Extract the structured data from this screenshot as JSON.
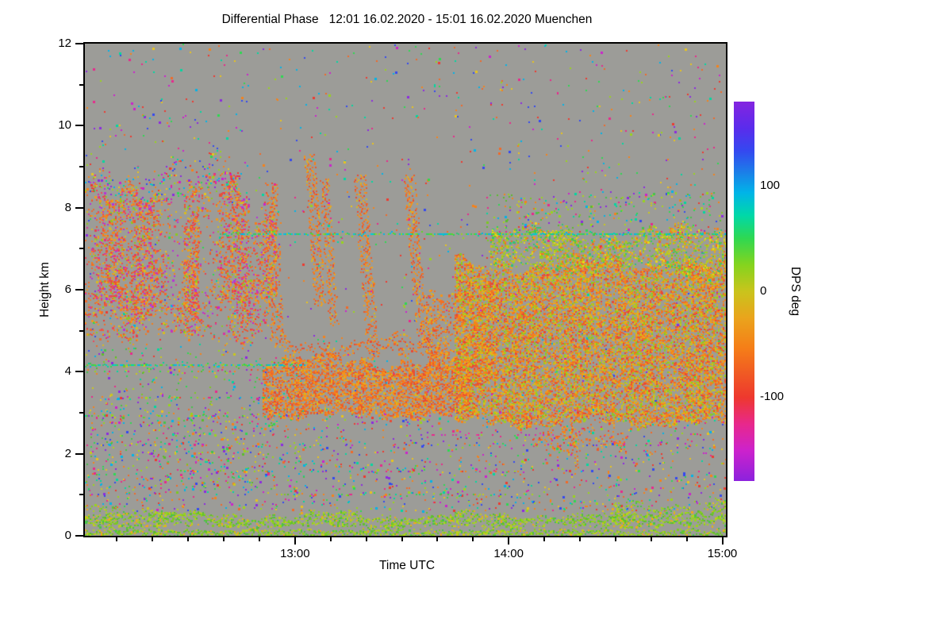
{
  "chart_data": {
    "type": "heatmap",
    "title": "Differential Phase   12:01 16.02.2020 - 15:01 16.02.2020 Muenchen",
    "xlabel": "Time UTC",
    "ylabel": "Height km",
    "station": "Muenchen",
    "time_start": "12:01 16.02.2020",
    "time_end": "15:01 16.02.2020",
    "t_total_min": 180,
    "h_max": 12,
    "x_ticks": [
      {
        "label": "13:00",
        "t": 59
      },
      {
        "label": "14:00",
        "t": 119
      },
      {
        "label": "15:00",
        "t": 179
      }
    ],
    "x_minor_step_min": 10,
    "y_ticks": [
      0,
      2,
      4,
      6,
      8,
      10,
      12
    ],
    "y_minor_step": 1,
    "no_data_color": "#9c9c98",
    "colorbar": {
      "label": "DPS deg",
      "vmax": 180,
      "vmin": -180,
      "ticks": [
        100,
        0,
        -100
      ],
      "stops": [
        [
          "0%",
          "#8424e0"
        ],
        [
          "7%",
          "#5a2cec"
        ],
        [
          "13%",
          "#3448f0"
        ],
        [
          "19%",
          "#1a82e8"
        ],
        [
          "24%",
          "#00b4e8"
        ],
        [
          "30%",
          "#00d8a8"
        ],
        [
          "36%",
          "#2ed852"
        ],
        [
          "43%",
          "#84d41e"
        ],
        [
          "50%",
          "#c9c41c"
        ],
        [
          "57%",
          "#eaa41c"
        ],
        [
          "65%",
          "#f57e18"
        ],
        [
          "72%",
          "#f05824"
        ],
        [
          "78%",
          "#ee382e"
        ],
        [
          "85%",
          "#e8288c"
        ],
        [
          "92%",
          "#cc22cc"
        ],
        [
          "100%",
          "#8c22dd"
        ]
      ]
    },
    "palettes": {
      "cirrus": [
        "#f57e1a",
        "#ef6a2a",
        "#e85432",
        "#f09a1e",
        "#d8ba20",
        "#e83e52",
        "#d834a2",
        "#b832d8",
        "#8cc822",
        "#f5821e",
        "#ef6a2a",
        "#e85432",
        "#f09a1e",
        "#ef465a"
      ],
      "orange": [
        "#f5821a",
        "#f07026",
        "#ea5a2c",
        "#f2941c",
        "#e84a36",
        "#f0a41c",
        "#d8b81e",
        "#ee6430",
        "#f5821a",
        "#f07026",
        "#ea5a2c",
        "#f2941c"
      ],
      "orangeGreen": [
        "#f5821a",
        "#f06c28",
        "#ea5a30",
        "#f29c1a",
        "#c9c41e",
        "#a3cc1e",
        "#e84a38",
        "#f0aa1a",
        "#8cc822",
        "#ef7426",
        "#f5821a",
        "#dcb01e"
      ],
      "greenOrange": [
        "#a3cc1e",
        "#c9c41e",
        "#8cc822",
        "#f29c1a",
        "#f5821a",
        "#66c438",
        "#dab41e",
        "#ef6c28",
        "#34c474",
        "#e8d41c",
        "#96d01e",
        "#b8cc1c"
      ],
      "green": [
        "#7cc822",
        "#98d41c",
        "#b4d41c",
        "#5cbc2e",
        "#c9c81c",
        "#46c44a",
        "#8ed01e",
        "#f0a81a",
        "#70c826",
        "#aad41e",
        "#84cc20",
        "#60c032"
      ],
      "noise": [
        "#8c2ae0",
        "#3448f0",
        "#00b4e8",
        "#2ed852",
        "#98d41c",
        "#e8c41c",
        "#f5821a",
        "#ee3a30",
        "#e8288c",
        "#cc22cc",
        "#00d8a0",
        "#f06a28"
      ],
      "greenNoise": [
        "#7cc822",
        "#98d41c",
        "#2ed852",
        "#00d8a0",
        "#c9c81c",
        "#e8288c",
        "#f5821a",
        "#00b4e8",
        "#8c2ae0",
        "#5cbc2e",
        "#46c44a",
        "#aad41e"
      ],
      "cyanGreen": [
        "#00c8e0",
        "#00d8a0",
        "#2ed852",
        "#60d822",
        "#00b4e8",
        "#98d41c",
        "#00ccc8",
        "#34c474"
      ],
      "magenta": [
        "#e8288c",
        "#cc22cc",
        "#d834a2",
        "#8c2ae0",
        "#ee3aa0"
      ]
    },
    "regions": [
      {
        "name": "background-noise-low",
        "type": "scatter",
        "t": [
          0,
          180
        ],
        "h": [
          0.6,
          3.1
        ],
        "density": 0.055,
        "palette": "noise"
      },
      {
        "name": "background-noise-mid",
        "type": "scatter",
        "t": [
          0,
          180
        ],
        "h": [
          3.1,
          12
        ],
        "density": 0.012,
        "palette": "noise"
      },
      {
        "name": "noise-left-lower",
        "type": "scatter",
        "t": [
          0,
          62
        ],
        "h": [
          1.0,
          4.6
        ],
        "density": 0.03,
        "palette": "greenNoise"
      },
      {
        "name": "cirrus-tower-1",
        "type": "cloud",
        "t": [
          0,
          16
        ],
        "h": [
          5.0,
          9.4
        ],
        "density": 0.5,
        "palette": "cirrus",
        "edge": 1.2,
        "striate": 0.9
      },
      {
        "name": "cirrus-tower-2",
        "type": "cloud",
        "t": [
          13,
          32
        ],
        "h": [
          4.9,
          8.7
        ],
        "density": 0.5,
        "palette": "cirrus",
        "edge": 1.1,
        "striate": 0.9
      },
      {
        "name": "cirrus-tower-3",
        "type": "cloud",
        "t": [
          28,
          46
        ],
        "h": [
          5.2,
          8.9
        ],
        "density": 0.48,
        "palette": "cirrus",
        "edge": 1.2,
        "striate": 0.9
      },
      {
        "name": "cirrus-tower-4",
        "type": "cloud",
        "t": [
          42,
          54
        ],
        "h": [
          5.5,
          8.4
        ],
        "density": 0.42,
        "palette": "cirrus",
        "edge": 1.0,
        "striate": 0.85
      },
      {
        "name": "cirrus-base",
        "type": "cloud",
        "t": [
          0,
          52
        ],
        "h": [
          4.6,
          6.4
        ],
        "density": 0.3,
        "palette": "cirrus",
        "edge": 0.7,
        "striate": 0.8
      },
      {
        "name": "cirrus-top-fringe",
        "type": "cloud",
        "t": [
          0,
          44
        ],
        "h": [
          8.0,
          9.5
        ],
        "density": 0.16,
        "palette": "noise",
        "edge": 1.0,
        "striate": 0.8
      },
      {
        "name": "fall-streak-1",
        "type": "vstreak",
        "tTop": 52,
        "hTop": 8.6,
        "tBot": 54,
        "hBot": 4.6,
        "w": 2.4,
        "density": 0.5,
        "palette": "orange"
      },
      {
        "name": "fall-streak-2",
        "type": "vstreak",
        "tTop": 63,
        "hTop": 9.3,
        "tBot": 66,
        "hBot": 5.6,
        "w": 2.0,
        "density": 0.5,
        "palette": "orange"
      },
      {
        "name": "fall-streak-3",
        "type": "vstreak",
        "tTop": 67,
        "hTop": 8.7,
        "tBot": 70,
        "hBot": 5.1,
        "w": 1.8,
        "density": 0.45,
        "palette": "orange"
      },
      {
        "name": "fall-streak-4",
        "type": "vstreak",
        "tTop": 77,
        "hTop": 8.8,
        "tBot": 81,
        "hBot": 4.3,
        "w": 2.2,
        "density": 0.5,
        "palette": "orange"
      },
      {
        "name": "fall-streak-5",
        "type": "vstreak",
        "tTop": 91,
        "hTop": 8.8,
        "tBot": 95,
        "hBot": 4.6,
        "w": 2.0,
        "density": 0.45,
        "palette": "orange"
      },
      {
        "name": "midlevel-cloud",
        "type": "cloud",
        "t": [
          50,
          108
        ],
        "h": [
          2.8,
          4.5
        ],
        "density": 0.85,
        "palette": "orange",
        "edge": 0.45,
        "striate": 0.25
      },
      {
        "name": "midlevel-cloud-top",
        "type": "cloud",
        "t": [
          56,
          102
        ],
        "h": [
          4.3,
          5.0
        ],
        "density": 0.25,
        "palette": "orange",
        "edge": 0.4,
        "striate": 0.6
      },
      {
        "name": "right-cloud-leading-edge",
        "type": "cloud",
        "t": [
          96,
          116
        ],
        "h": [
          3.6,
          6.5
        ],
        "density": 0.45,
        "palette": "orange",
        "edge": 0.8,
        "striate": 0.7
      },
      {
        "name": "right-cloud-core",
        "type": "cloud",
        "t": [
          104,
          180
        ],
        "h": [
          2.6,
          6.9
        ],
        "density": 0.85,
        "palette": "orangeGreen",
        "edge": 0.5,
        "striate": 0.3
      },
      {
        "name": "right-cloud-upper",
        "type": "cloud",
        "t": [
          114,
          180
        ],
        "h": [
          6.3,
          7.7
        ],
        "density": 0.55,
        "palette": "greenOrange",
        "edge": 0.6,
        "striate": 0.5
      },
      {
        "name": "right-cloud-top-fringe",
        "type": "scatter",
        "t": [
          112,
          180
        ],
        "h": [
          7.2,
          8.4
        ],
        "density": 0.06,
        "palette": "greenNoise"
      },
      {
        "name": "virga-band",
        "type": "cloud",
        "t": [
          126,
          152
        ],
        "h": [
          1.9,
          2.8
        ],
        "density": 0.18,
        "palette": "orange",
        "edge": 0.4,
        "striate": 0.7
      },
      {
        "name": "virga-streak",
        "type": "vstreak",
        "tTop": 137,
        "hTop": 2.8,
        "tBot": 138,
        "hBot": 1.6,
        "w": 1.2,
        "density": 0.35,
        "palette": "orange"
      },
      {
        "name": "surface-band-upper",
        "type": "cloud",
        "t": [
          0,
          180
        ],
        "h": [
          0.15,
          0.65
        ],
        "density": 0.5,
        "palette": "green",
        "edge": 0.25,
        "striate": 0.35
      },
      {
        "name": "surface-band-lower",
        "type": "cloud",
        "t": [
          0,
          180
        ],
        "h": [
          0.0,
          0.18
        ],
        "density": 0.45,
        "palette": "green",
        "edge": 0.05,
        "striate": 0.3
      },
      {
        "name": "surface-left-plume",
        "type": "cloud",
        "t": [
          0,
          26
        ],
        "h": [
          0.3,
          0.85
        ],
        "density": 0.3,
        "palette": "green",
        "edge": 0.3,
        "striate": 0.6
      },
      {
        "name": "surface-right-plume",
        "type": "cloud",
        "t": [
          148,
          180
        ],
        "h": [
          0.3,
          1.0
        ],
        "density": 0.3,
        "palette": "green",
        "edge": 0.35,
        "striate": 0.6
      },
      {
        "name": "interference-line-7km",
        "type": "hline",
        "t": [
          38,
          180
        ],
        "h": 7.35,
        "density": 0.7,
        "palette": "cyanGreen"
      },
      {
        "name": "interference-line-4km",
        "type": "hline",
        "t": [
          0,
          62
        ],
        "h": 4.15,
        "density": 0.75,
        "palette": "cyanGreen"
      },
      {
        "name": "interference-line-4km-b",
        "type": "hline",
        "t": [
          0,
          42
        ],
        "h": 4.0,
        "density": 0.35,
        "palette": "greenNoise"
      },
      {
        "name": "interference-line-3km",
        "type": "hline",
        "t": [
          4,
          58
        ],
        "h": 3.35,
        "density": 0.3,
        "palette": "noise"
      },
      {
        "name": "interference-line-2-9km",
        "type": "hline",
        "t": [
          0,
          58
        ],
        "h": 2.92,
        "density": 0.3,
        "palette": "greenNoise"
      },
      {
        "name": "interference-line-2-2km",
        "type": "hline",
        "t": [
          0,
          172
        ],
        "h": 2.2,
        "density": 0.18,
        "palette": "noise"
      },
      {
        "name": "interference-line-1-6km",
        "type": "hline",
        "t": [
          28,
          148
        ],
        "h": 1.55,
        "density": 0.18,
        "palette": "noise"
      },
      {
        "name": "interference-line-2-5km-magenta",
        "type": "hline",
        "t": [
          88,
          136
        ],
        "h": 2.45,
        "density": 0.25,
        "palette": "magenta"
      },
      {
        "name": "interference-line-1km",
        "type": "hline",
        "t": [
          52,
          128
        ],
        "h": 1.0,
        "density": 0.22,
        "palette": "greenNoise"
      }
    ]
  }
}
